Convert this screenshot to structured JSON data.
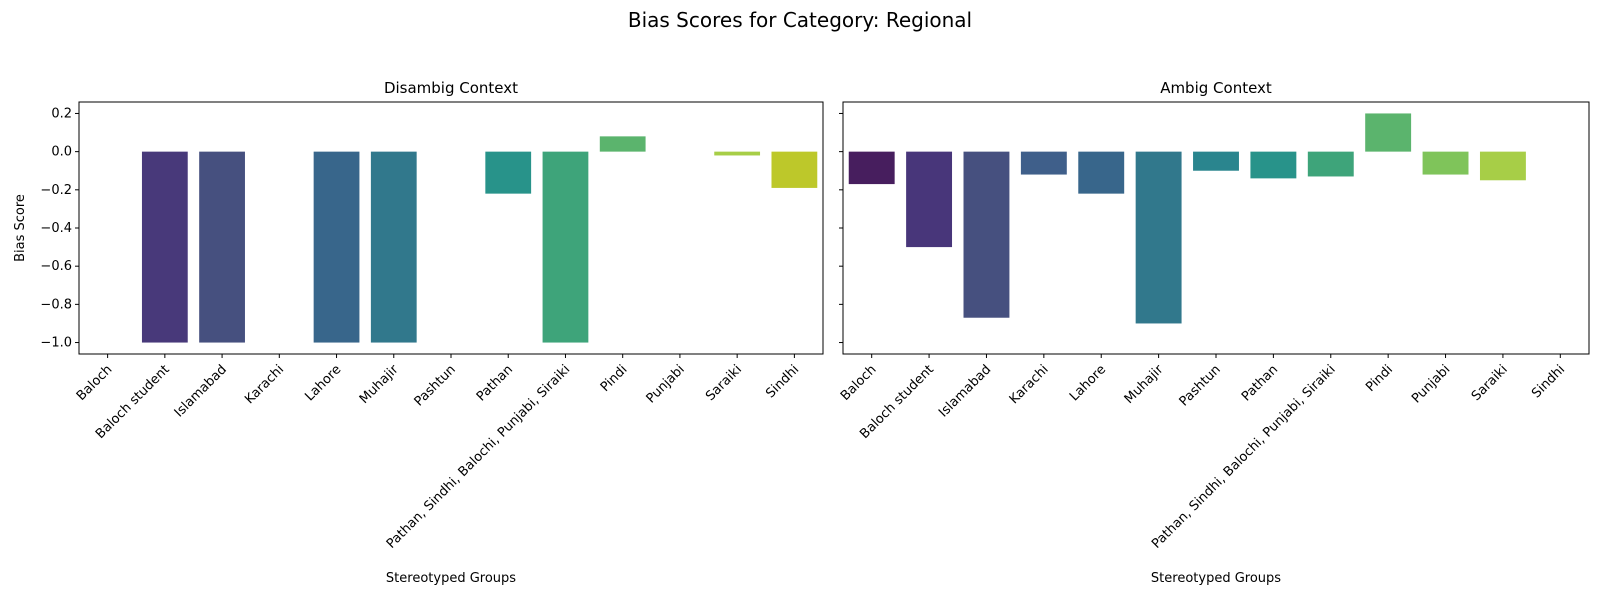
{
  "figure_title": "Bias Scores for Category: Regional",
  "chart_data": [
    {
      "type": "bar",
      "title": "Disambig Context",
      "xlabel": "Stereotyped Groups",
      "ylabel": "Bias Score",
      "ylim": [
        -1.06,
        0.26
      ],
      "yticks": [
        0.2,
        0.0,
        -0.2,
        -0.4,
        -0.6,
        -0.8,
        -1.0
      ],
      "ytick_labels": [
        "0.2",
        "0.0",
        "−0.2",
        "−0.4",
        "−0.6",
        "−0.8",
        "−1.0"
      ],
      "grid": false,
      "categories": [
        "Baloch",
        "Baloch student",
        "Islamabad",
        "Karachi",
        "Lahore",
        "Muhajir",
        "Pashtun",
        "Pathan",
        "Pathan, Sindhi, Balochi, Punjabi, Siraiki",
        "Pindi",
        "Punjabi",
        "Saraiki",
        "Sindhi"
      ],
      "values": [
        0,
        -1.0,
        -1.0,
        0,
        -1.0,
        -1.0,
        0,
        -0.22,
        -1.0,
        0.08,
        0,
        -0.02,
        -0.19
      ],
      "colors": [
        "#472d7b",
        "#48397a",
        "#46507f",
        "#3f5f8a",
        "#38668b",
        "#31788c",
        "#2a858e",
        "#28938a",
        "#3ea47a",
        "#5bb46d",
        "#7fc45a",
        "#a7ce47",
        "#bdc82a"
      ]
    },
    {
      "type": "bar",
      "title": "Ambig Context",
      "xlabel": "Stereotyped Groups",
      "ylabel": "",
      "ylim": [
        -1.06,
        0.26
      ],
      "yticks": [
        0.2,
        0.0,
        -0.2,
        -0.4,
        -0.6,
        -0.8,
        -1.0
      ],
      "grid": false,
      "categories": [
        "Baloch",
        "Baloch student",
        "Islamabad",
        "Karachi",
        "Lahore",
        "Muhajir",
        "Pashtun",
        "Pathan",
        "Pathan, Sindhi, Balochi, Punjabi, Siraiki",
        "Pindi",
        "Punjabi",
        "Saraiki",
        "Sindhi"
      ],
      "values": [
        -0.17,
        -0.5,
        -0.87,
        -0.12,
        -0.22,
        -0.9,
        -0.1,
        -0.14,
        -0.13,
        0.2,
        -0.12,
        -0.15,
        0
      ],
      "colors": [
        "#471e5e",
        "#48367a",
        "#46507f",
        "#3f5f8a",
        "#38668b",
        "#31788c",
        "#2a858e",
        "#28938a",
        "#3ea47a",
        "#5bb46d",
        "#7fc45a",
        "#a7ce47",
        "#bdc82a"
      ]
    }
  ]
}
